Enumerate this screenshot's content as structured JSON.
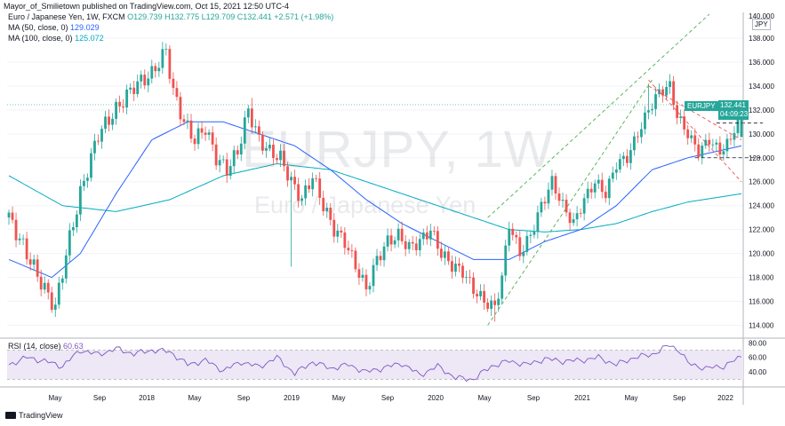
{
  "header": {
    "credit": "Mayor_of_Smilietown published on TradingView.com, Oct 15, 2021 12:50 UTC-4",
    "symbol_line": "Euro / Japanese Yen, 1W, FXCM",
    "ohlc": "O129.739 H132.775 L129.709 C132.441 +2.571 (+1.98%)",
    "ma50_label": "MA (50, close, 0)",
    "ma50_value": "129.029",
    "ma100_label": "MA (100, close, 0)",
    "ma100_value": "125.072"
  },
  "watermark": {
    "symbol": "EURJPY, 1W",
    "description": "Euro / Japanese Yen"
  },
  "badge": {
    "symbol": "EURJPY",
    "price": "132.441",
    "countdown": "04:09:23"
  },
  "currency": "JPY",
  "rsi": {
    "label": "RSI (14, close)",
    "value": "60.63"
  },
  "branding": {
    "logo_text": "TradingView"
  },
  "colors": {
    "up": "#26a69a",
    "down": "#ef5350",
    "ma50": "#2962ff",
    "ma100": "#00acc1",
    "channel": "#4caf50",
    "wedge": "#ef5350",
    "rsi": "#7e57c2",
    "rsi_band": "#ede7f6"
  },
  "chart_data": {
    "type": "candlestick",
    "ylim": [
      113,
      140
    ],
    "y_ticks": [
      114,
      116,
      118,
      120,
      122,
      124,
      126,
      128,
      130,
      132,
      134,
      136,
      138
    ],
    "y_top_label": "140.000",
    "x_tick_labels": [
      "May",
      "Sep",
      "2018",
      "May",
      "Sep",
      "2019",
      "May",
      "Sep",
      "2020",
      "May",
      "Sep",
      "2021",
      "May",
      "Sep",
      "2022"
    ],
    "close_path": [
      [
        0,
        123
      ],
      [
        5,
        120
      ],
      [
        10,
        117
      ],
      [
        13,
        115.5
      ],
      [
        16,
        120
      ],
      [
        20,
        125
      ],
      [
        25,
        130
      ],
      [
        30,
        132
      ],
      [
        35,
        134
      ],
      [
        40,
        135
      ],
      [
        44,
        137
      ],
      [
        46,
        133.5
      ],
      [
        49,
        131
      ],
      [
        52,
        129.5
      ],
      [
        55,
        130.5
      ],
      [
        58,
        128
      ],
      [
        61,
        127
      ],
      [
        64,
        128.5
      ],
      [
        67,
        132
      ],
      [
        70,
        129.5
      ],
      [
        73,
        128.5
      ],
      [
        76,
        128
      ],
      [
        79,
        126
      ],
      [
        82,
        124.5
      ],
      [
        85,
        126.5
      ],
      [
        88,
        124
      ],
      [
        91,
        122
      ],
      [
        94,
        121
      ],
      [
        97,
        119
      ],
      [
        100,
        117
      ],
      [
        103,
        119.5
      ],
      [
        106,
        121
      ],
      [
        109,
        121.5
      ],
      [
        112,
        120.5
      ],
      [
        115,
        121
      ],
      [
        118,
        122
      ],
      [
        121,
        120
      ],
      [
        124,
        119
      ],
      [
        127,
        118.5
      ],
      [
        130,
        117
      ],
      [
        133,
        116
      ],
      [
        136,
        115.5
      ],
      [
        138,
        118
      ],
      [
        140,
        122.5
      ],
      [
        143,
        120
      ],
      [
        146,
        121.5
      ],
      [
        149,
        124
      ],
      [
        152,
        126
      ],
      [
        155,
        124
      ],
      [
        158,
        122.5
      ],
      [
        161,
        124.5
      ],
      [
        164,
        126
      ],
      [
        167,
        125
      ],
      [
        170,
        127.5
      ],
      [
        173,
        128
      ],
      [
        176,
        130
      ],
      [
        179,
        132
      ],
      [
        182,
        133.5
      ],
      [
        185,
        134
      ],
      [
        187,
        131.5
      ],
      [
        190,
        130
      ],
      [
        193,
        128.5
      ],
      [
        196,
        129.5
      ],
      [
        199,
        128.5
      ],
      [
        202,
        129.5
      ],
      [
        205,
        132.44
      ]
    ],
    "extremes": {
      "high": [
        [
          44,
          137.4
        ],
        [
          68,
          133
        ],
        [
          179,
          134.2
        ]
      ],
      "low": [
        [
          13,
          115
        ],
        [
          79,
          118.9
        ],
        [
          136,
          114.3
        ],
        [
          193,
          128.2
        ]
      ]
    },
    "ma50_path": [
      [
        0,
        119.5
      ],
      [
        12,
        118
      ],
      [
        20,
        120
      ],
      [
        30,
        125
      ],
      [
        40,
        129.5
      ],
      [
        50,
        131
      ],
      [
        60,
        131
      ],
      [
        70,
        130
      ],
      [
        80,
        129
      ],
      [
        90,
        127
      ],
      [
        100,
        124.5
      ],
      [
        110,
        122.5
      ],
      [
        120,
        121
      ],
      [
        130,
        119.5
      ],
      [
        140,
        119.5
      ],
      [
        150,
        121
      ],
      [
        160,
        122
      ],
      [
        170,
        124
      ],
      [
        180,
        127
      ],
      [
        190,
        128
      ],
      [
        205,
        129
      ]
    ],
    "ma100_path": [
      [
        0,
        126.5
      ],
      [
        15,
        124
      ],
      [
        30,
        123.5
      ],
      [
        45,
        124.5
      ],
      [
        60,
        126.5
      ],
      [
        75,
        127.5
      ],
      [
        90,
        127
      ],
      [
        105,
        125.5
      ],
      [
        120,
        124
      ],
      [
        130,
        123
      ],
      [
        140,
        122
      ],
      [
        150,
        121.8
      ],
      [
        160,
        122
      ],
      [
        170,
        122.5
      ],
      [
        180,
        123.5
      ],
      [
        190,
        124.3
      ],
      [
        205,
        125
      ]
    ],
    "rsi_ylim": [
      22,
      84
    ],
    "rsi_ticks": [
      40,
      60,
      80
    ],
    "rsi_band": [
      30,
      70
    ],
    "rsi_path": [
      [
        0,
        50
      ],
      [
        5,
        60
      ],
      [
        10,
        55
      ],
      [
        15,
        48
      ],
      [
        20,
        70
      ],
      [
        25,
        64
      ],
      [
        30,
        72
      ],
      [
        35,
        65
      ],
      [
        40,
        70
      ],
      [
        45,
        68
      ],
      [
        50,
        50
      ],
      [
        55,
        56
      ],
      [
        60,
        42
      ],
      [
        65,
        54
      ],
      [
        70,
        47
      ],
      [
        75,
        60
      ],
      [
        80,
        38
      ],
      [
        85,
        54
      ],
      [
        90,
        45
      ],
      [
        95,
        50
      ],
      [
        100,
        40
      ],
      [
        105,
        46
      ],
      [
        110,
        52
      ],
      [
        115,
        36
      ],
      [
        120,
        48
      ],
      [
        125,
        32
      ],
      [
        130,
        30
      ],
      [
        135,
        48
      ],
      [
        140,
        55
      ],
      [
        145,
        50
      ],
      [
        150,
        58
      ],
      [
        155,
        55
      ],
      [
        160,
        56
      ],
      [
        165,
        60
      ],
      [
        170,
        50
      ],
      [
        175,
        60
      ],
      [
        180,
        64
      ],
      [
        185,
        77
      ],
      [
        188,
        68
      ],
      [
        190,
        52
      ],
      [
        195,
        45
      ],
      [
        200,
        48
      ],
      [
        205,
        60.6
      ]
    ]
  }
}
